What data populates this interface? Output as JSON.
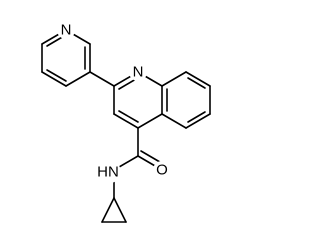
{
  "atoms": [
    {
      "label": "N"
    },
    {
      "label": "N"
    },
    {
      "label": "O"
    },
    {
      "label": "HN"
    }
  ]
}
